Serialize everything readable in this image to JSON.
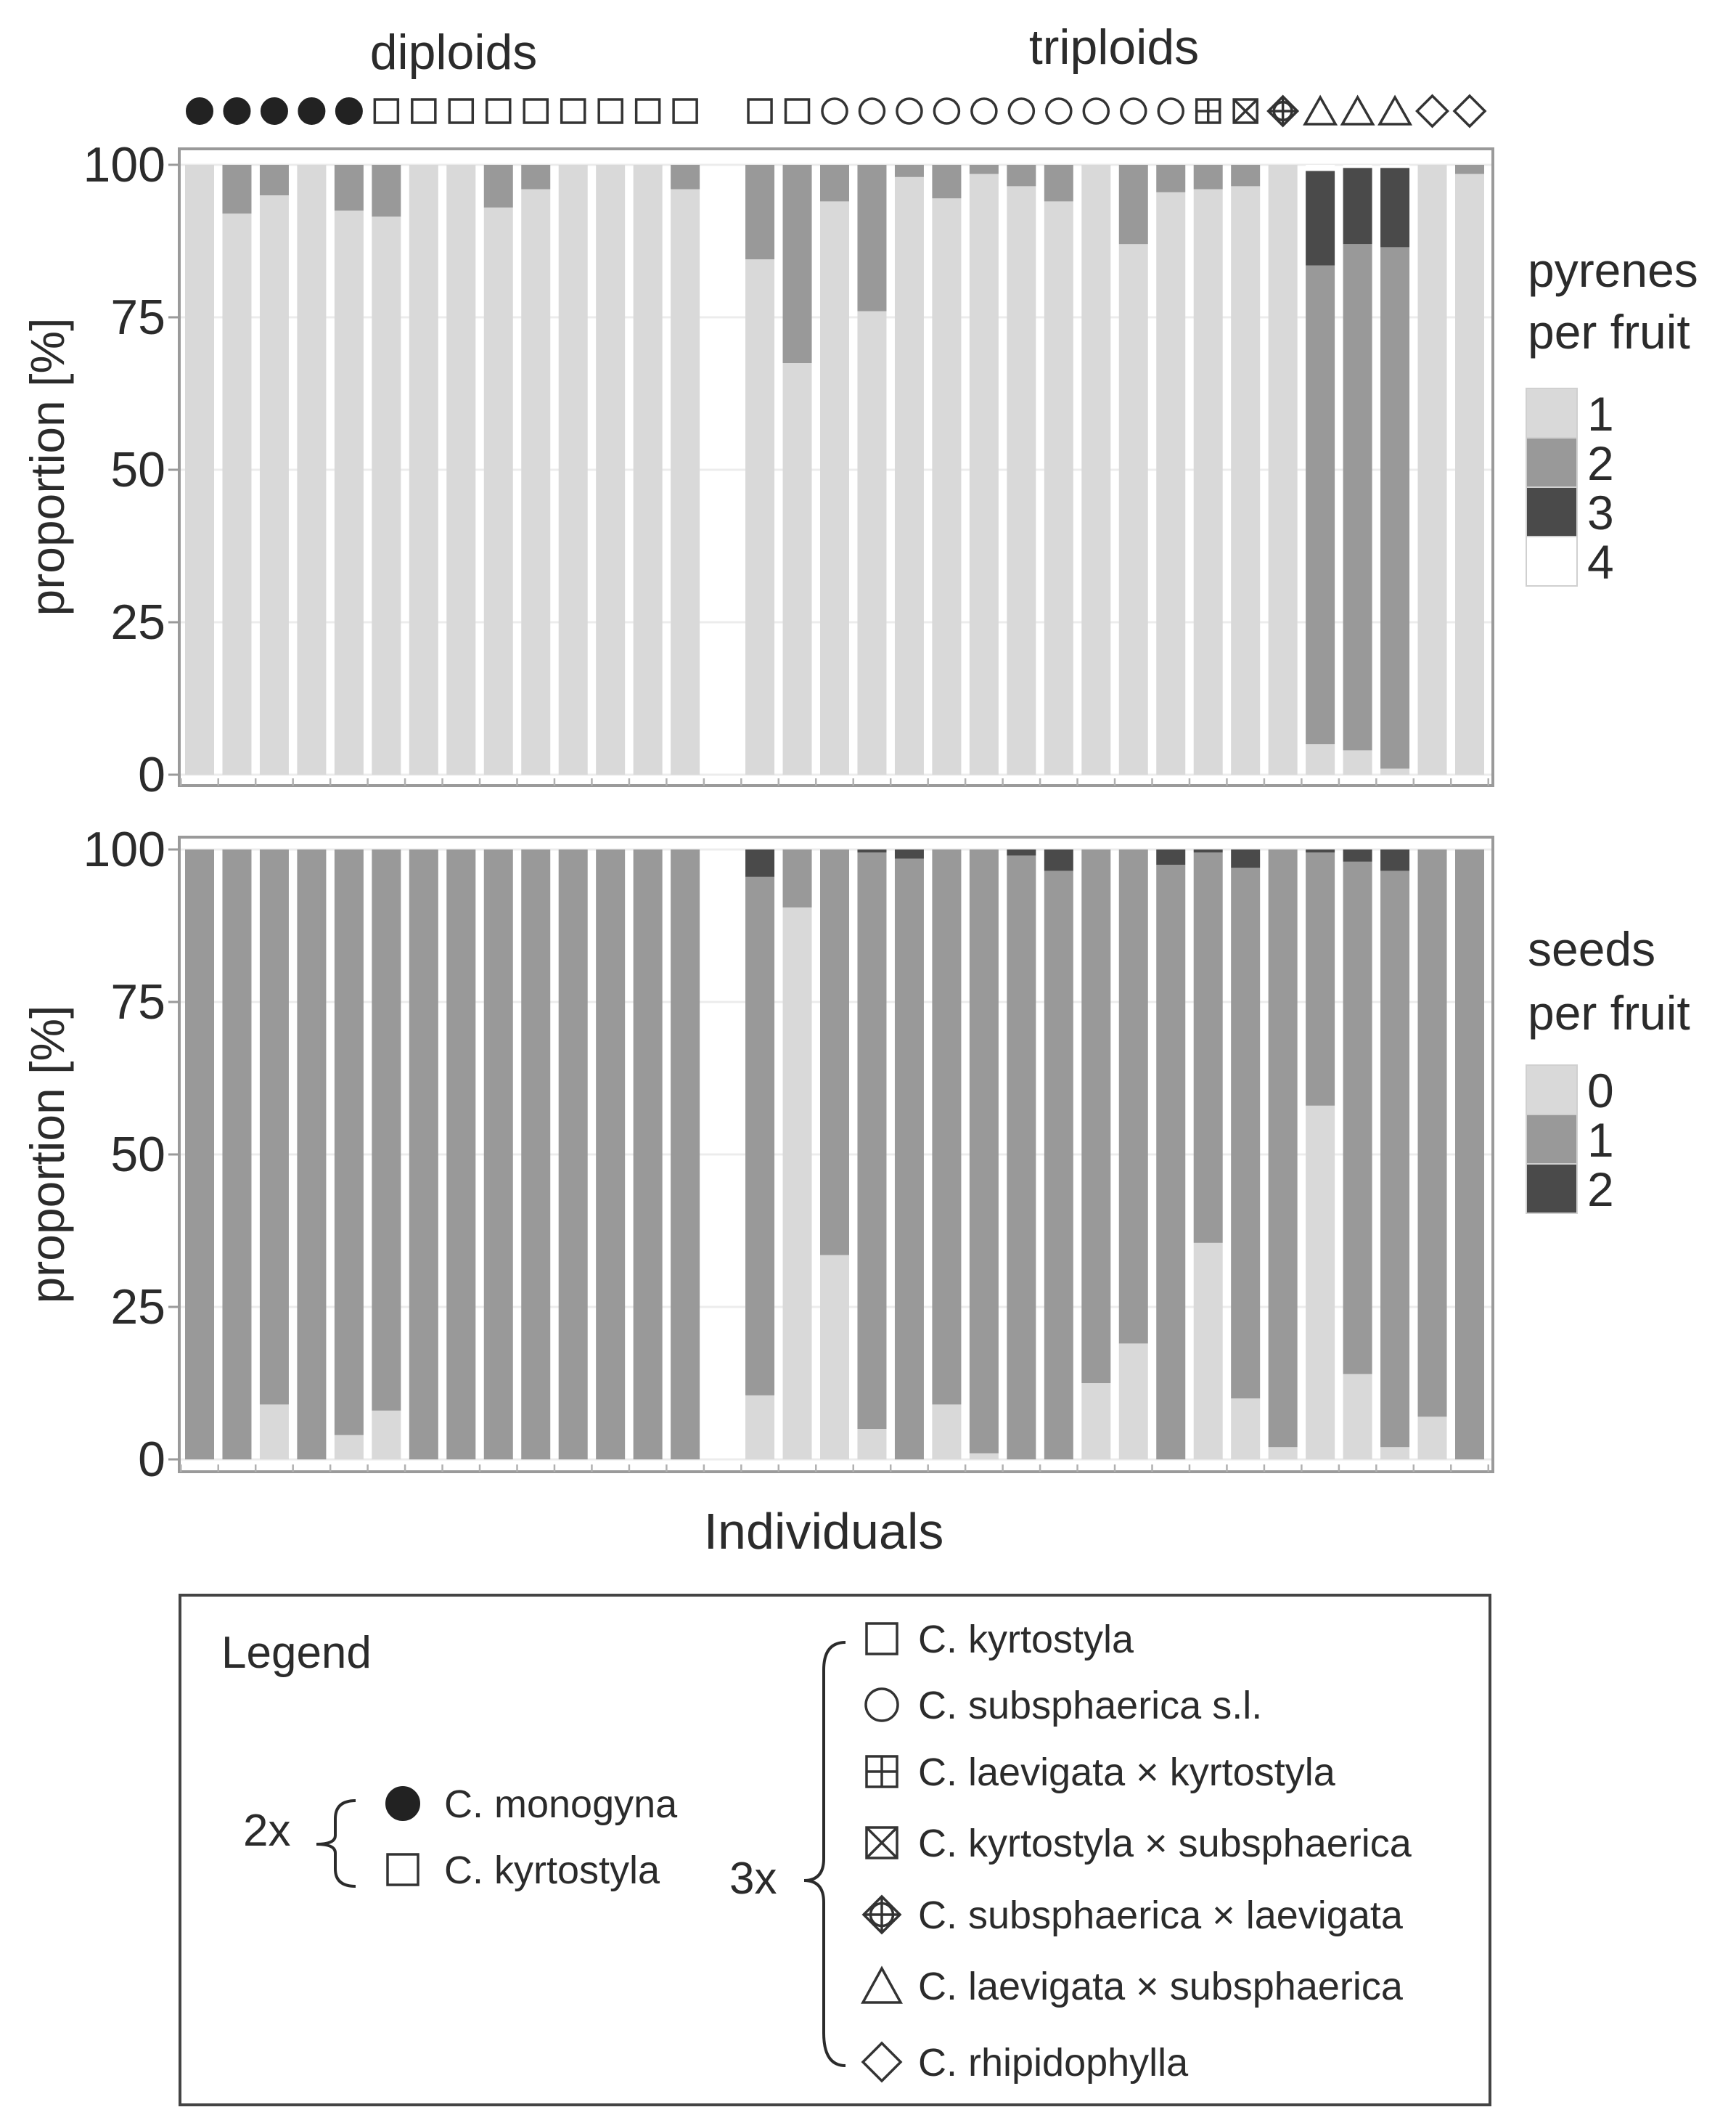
{
  "chart_data": [
    {
      "type": "stacked-bar",
      "ylabel": "proportion [%]",
      "xlabel": "",
      "ylim": [
        0,
        100
      ],
      "yticks": [
        0,
        25,
        50,
        75,
        100
      ],
      "legend_title": [
        "pyrenes",
        "per fruit"
      ],
      "legend_keys": [
        "1",
        "2",
        "3",
        "4"
      ],
      "colors": [
        "#d9d9d9",
        "#999999",
        "#4a4a4a",
        "#ffffff"
      ],
      "groups": [
        "diploids",
        "triploids"
      ],
      "bars": [
        {
          "group": 0,
          "symbol": "circle-filled",
          "values": [
            100,
            0,
            0,
            0
          ]
        },
        {
          "group": 0,
          "symbol": "circle-filled",
          "values": [
            92,
            8,
            0,
            0
          ]
        },
        {
          "group": 0,
          "symbol": "circle-filled",
          "values": [
            95,
            5,
            0,
            0
          ]
        },
        {
          "group": 0,
          "symbol": "circle-filled",
          "values": [
            100,
            0,
            0,
            0
          ]
        },
        {
          "group": 0,
          "symbol": "circle-filled",
          "values": [
            92.5,
            7.5,
            0,
            0
          ]
        },
        {
          "group": 0,
          "symbol": "square",
          "values": [
            91.5,
            8.5,
            0,
            0
          ]
        },
        {
          "group": 0,
          "symbol": "square",
          "values": [
            100,
            0,
            0,
            0
          ]
        },
        {
          "group": 0,
          "symbol": "square",
          "values": [
            100,
            0,
            0,
            0
          ]
        },
        {
          "group": 0,
          "symbol": "square",
          "values": [
            93,
            7,
            0,
            0
          ]
        },
        {
          "group": 0,
          "symbol": "square",
          "values": [
            96,
            4,
            0,
            0
          ]
        },
        {
          "group": 0,
          "symbol": "square",
          "values": [
            100,
            0,
            0,
            0
          ]
        },
        {
          "group": 0,
          "symbol": "square",
          "values": [
            100,
            0,
            0,
            0
          ]
        },
        {
          "group": 0,
          "symbol": "square",
          "values": [
            100,
            0,
            0,
            0
          ]
        },
        {
          "group": 0,
          "symbol": "square",
          "values": [
            96,
            4,
            0,
            0
          ]
        },
        {
          "group": 1,
          "symbol": "square",
          "values": [
            84.5,
            15.5,
            0,
            0
          ]
        },
        {
          "group": 1,
          "symbol": "square",
          "values": [
            67.5,
            32.5,
            0,
            0
          ]
        },
        {
          "group": 1,
          "symbol": "circle",
          "values": [
            94,
            6,
            0,
            0
          ]
        },
        {
          "group": 1,
          "symbol": "circle",
          "values": [
            76,
            24,
            0,
            0
          ]
        },
        {
          "group": 1,
          "symbol": "circle",
          "values": [
            98,
            2,
            0,
            0
          ]
        },
        {
          "group": 1,
          "symbol": "circle",
          "values": [
            94.5,
            5.5,
            0,
            0
          ]
        },
        {
          "group": 1,
          "symbol": "circle",
          "values": [
            98.5,
            1.5,
            0,
            0
          ]
        },
        {
          "group": 1,
          "symbol": "circle",
          "values": [
            96.5,
            3.5,
            0,
            0
          ]
        },
        {
          "group": 1,
          "symbol": "circle",
          "values": [
            94,
            6,
            0,
            0
          ]
        },
        {
          "group": 1,
          "symbol": "circle",
          "values": [
            100,
            0,
            0,
            0
          ]
        },
        {
          "group": 1,
          "symbol": "circle",
          "values": [
            87,
            13,
            0,
            0
          ]
        },
        {
          "group": 1,
          "symbol": "circle",
          "values": [
            95.5,
            4.5,
            0,
            0
          ]
        },
        {
          "group": 1,
          "symbol": "square-plus",
          "values": [
            96,
            4,
            0,
            0
          ]
        },
        {
          "group": 1,
          "symbol": "square-x",
          "values": [
            96.5,
            3.5,
            0,
            0
          ]
        },
        {
          "group": 1,
          "symbol": "circle-plus",
          "values": [
            100,
            0,
            0,
            0
          ]
        },
        {
          "group": 1,
          "symbol": "triangle",
          "values": [
            5,
            78.5,
            15.5,
            1
          ]
        },
        {
          "group": 1,
          "symbol": "triangle",
          "values": [
            4,
            83,
            12.5,
            0.5
          ]
        },
        {
          "group": 1,
          "symbol": "triangle",
          "values": [
            1,
            85.5,
            13,
            0.5
          ]
        },
        {
          "group": 1,
          "symbol": "diamond",
          "values": [
            100,
            0,
            0,
            0
          ]
        },
        {
          "group": 1,
          "symbol": "diamond",
          "values": [
            98.5,
            1.5,
            0,
            0
          ]
        }
      ]
    },
    {
      "type": "stacked-bar",
      "ylabel": "proportion [%]",
      "xlabel": "Individuals",
      "ylim": [
        0,
        100
      ],
      "yticks": [
        0,
        25,
        50,
        75,
        100
      ],
      "legend_title": [
        "seeds",
        "per fruit"
      ],
      "legend_keys": [
        "0",
        "1",
        "2"
      ],
      "colors": [
        "#d9d9d9",
        "#999999",
        "#4a4a4a"
      ],
      "bars": [
        {
          "values": [
            0,
            100,
            0
          ]
        },
        {
          "values": [
            0,
            100,
            0
          ]
        },
        {
          "values": [
            9,
            91,
            0
          ]
        },
        {
          "values": [
            0,
            100,
            0
          ]
        },
        {
          "values": [
            4,
            96,
            0
          ]
        },
        {
          "values": [
            8,
            92,
            0
          ]
        },
        {
          "values": [
            0,
            100,
            0
          ]
        },
        {
          "values": [
            0,
            100,
            0
          ]
        },
        {
          "values": [
            0,
            100,
            0
          ]
        },
        {
          "values": [
            0,
            100,
            0
          ]
        },
        {
          "values": [
            0,
            100,
            0
          ]
        },
        {
          "values": [
            0,
            100,
            0
          ]
        },
        {
          "values": [
            0,
            100,
            0
          ]
        },
        {
          "values": [
            0,
            100,
            0
          ]
        },
        {
          "values": [
            10.5,
            85,
            4.5
          ]
        },
        {
          "values": [
            90.5,
            9.5,
            0
          ]
        },
        {
          "values": [
            33.5,
            66.5,
            0
          ]
        },
        {
          "values": [
            5,
            94.5,
            0.5
          ]
        },
        {
          "values": [
            0,
            98.5,
            1.5
          ]
        },
        {
          "values": [
            9,
            91,
            0
          ]
        },
        {
          "values": [
            1,
            99,
            0
          ]
        },
        {
          "values": [
            0,
            99,
            1
          ]
        },
        {
          "values": [
            0,
            96.5,
            3.5
          ]
        },
        {
          "values": [
            12.5,
            87.5,
            0
          ]
        },
        {
          "values": [
            19,
            81,
            0
          ]
        },
        {
          "values": [
            0,
            97.5,
            2.5
          ]
        },
        {
          "values": [
            35.5,
            64,
            0.5
          ]
        },
        {
          "values": [
            10,
            87,
            3
          ]
        },
        {
          "values": [
            2,
            98,
            0
          ]
        },
        {
          "values": [
            58,
            41.5,
            0.5
          ]
        },
        {
          "values": [
            14,
            84,
            2
          ]
        },
        {
          "values": [
            2,
            94.5,
            3.5
          ]
        },
        {
          "values": [
            7,
            93,
            0
          ]
        },
        {
          "values": [
            0,
            100,
            0
          ]
        }
      ]
    }
  ],
  "legend": {
    "title": "Legend",
    "diploid_label": "2x",
    "triploid_label": "3x",
    "diploid_items": [
      {
        "symbol": "circle-filled",
        "label": "C. monogyna"
      },
      {
        "symbol": "square",
        "label": "C. kyrtostyla"
      }
    ],
    "triploid_items": [
      {
        "symbol": "square",
        "label": "C. kyrtostyla"
      },
      {
        "symbol": "circle",
        "label": "C. subsphaerica s.l."
      },
      {
        "symbol": "square-plus",
        "label": "C. laevigata × kyrtostyla"
      },
      {
        "symbol": "square-x",
        "label": "C. kyrtostyla × subsphaerica"
      },
      {
        "symbol": "circle-plus",
        "label": "C. subsphaerica × laevigata"
      },
      {
        "symbol": "triangle",
        "label": "C. laevigata × subsphaerica"
      },
      {
        "symbol": "diamond",
        "label": "C. rhipidophylla"
      }
    ]
  }
}
